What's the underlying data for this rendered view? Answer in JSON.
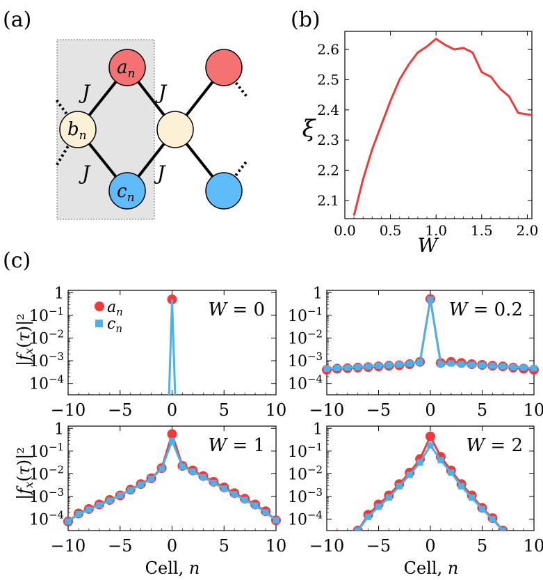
{
  "panel_labels": [
    "(a)",
    "(b)",
    "(c)"
  ],
  "colors": {
    "red": "#f03a3a",
    "blue": "#4ab2ec",
    "a_site": "#f47272",
    "b_site": "#fcf0d6",
    "c_site": "#5fbcf8",
    "cell_box": "#e4e4e4"
  },
  "lattice": {
    "site_a": "a",
    "site_b": "b",
    "site_c": "c",
    "subscript": "n",
    "hopping": "J"
  },
  "chart_data": [
    {
      "panel": "(b)",
      "type": "line",
      "xlabel": "W",
      "ylabel": "ξ",
      "xlim": [
        0,
        2.05
      ],
      "ylim": [
        2.04,
        2.66
      ],
      "xticks": [
        "0.0",
        "0.5",
        "1.0",
        "1.5",
        "2.0"
      ],
      "yticks": [
        "2.1",
        "2.2",
        "2.3",
        "2.4",
        "2.5",
        "2.6"
      ],
      "series": [
        {
          "color": "#f03a3a",
          "x": [
            0.1,
            0.2,
            0.3,
            0.4,
            0.5,
            0.6,
            0.7,
            0.8,
            0.9,
            1.0,
            1.1,
            1.2,
            1.3,
            1.4,
            1.5,
            1.6,
            1.7,
            1.8,
            1.9,
            2.0,
            2.1
          ],
          "y": [
            2.05,
            2.17,
            2.27,
            2.35,
            2.43,
            2.5,
            2.55,
            2.59,
            2.61,
            2.635,
            2.615,
            2.6,
            2.605,
            2.59,
            2.525,
            2.51,
            2.47,
            2.445,
            2.39,
            2.385,
            2.38
          ]
        }
      ]
    },
    {
      "panel": "(c)",
      "type": "scatter",
      "ylabel": "|f_x(τ)|²",
      "xlabel_text": "Cell, ",
      "xlabel_var": "n",
      "ylog": true,
      "xlim": [
        -10,
        10
      ],
      "ylim_log10": [
        -4.5,
        0.1
      ],
      "xticks": [
        "−10",
        "−5",
        "0",
        "5",
        "10"
      ],
      "yticks": [
        "1",
        "10⁻¹",
        "10⁻²",
        "10⁻³",
        "10⁻⁴"
      ],
      "legend": [
        {
          "name_var": "a",
          "name_sub": "n",
          "marker": "circle",
          "color": "#f03a3a"
        },
        {
          "name_var": "c",
          "name_sub": "n",
          "marker": "square",
          "color": "#4ab2ec"
        }
      ],
      "subplots": [
        {
          "annotation": "W = 0",
          "a": {
            "x": [
              0
            ],
            "log10y": [
              -0.3
            ]
          },
          "c_line": {
            "x": [
              -0.3,
              0,
              0.3
            ],
            "log10y": [
              -4.6,
              -0.3,
              -4.6
            ]
          }
        },
        {
          "annotation": "W = 0.2",
          "a": {
            "x": [
              -10,
              -9,
              -8,
              -7,
              -6,
              -5,
              -4,
              -3,
              -2,
              -1,
              0,
              1,
              2,
              3,
              4,
              5,
              6,
              7,
              8,
              9,
              10
            ],
            "log10y": [
              -3.4,
              -3.35,
              -3.33,
              -3.3,
              -3.28,
              -3.25,
              -3.22,
              -3.2,
              -3.15,
              -3.05,
              -0.28,
              -3.1,
              -3.05,
              -3.1,
              -3.15,
              -3.18,
              -3.22,
              -3.25,
              -3.3,
              -3.35,
              -3.4
            ]
          },
          "c": {
            "x": [
              -10,
              -9,
              -8,
              -7,
              -6,
              -5,
              -4,
              -3,
              -2,
              -1,
              0,
              1,
              2,
              3,
              4,
              5,
              6,
              7,
              8,
              9,
              10
            ],
            "log10y": [
              -3.35,
              -3.32,
              -3.3,
              -3.28,
              -3.25,
              -3.22,
              -3.2,
              -3.17,
              -3.13,
              -3.07,
              -0.3,
              -3.15,
              -3.12,
              -3.15,
              -3.18,
              -3.2,
              -3.22,
              -3.25,
              -3.28,
              -3.3,
              -3.33
            ]
          }
        },
        {
          "annotation": "W = 1",
          "a": {
            "x": [
              -10,
              -9,
              -8,
              -7,
              -6,
              -5,
              -4,
              -3,
              -2,
              -1,
              0,
              1,
              2,
              3,
              4,
              5,
              6,
              7,
              8,
              9,
              10
            ],
            "log10y": [
              -4.1,
              -3.75,
              -3.55,
              -3.35,
              -3.15,
              -2.95,
              -2.7,
              -2.45,
              -2.2,
              -1.75,
              -0.25,
              -1.65,
              -1.85,
              -2.1,
              -2.35,
              -2.6,
              -2.85,
              -3.1,
              -3.35,
              -3.65,
              -4.05
            ]
          },
          "c": {
            "x": [
              -10,
              -9,
              -8,
              -7,
              -6,
              -5,
              -4,
              -3,
              -2,
              -1,
              0,
              1,
              2,
              3,
              4,
              5,
              6,
              7,
              8,
              9,
              10
            ],
            "log10y": [
              -4.1,
              -3.78,
              -3.58,
              -3.38,
              -3.18,
              -2.95,
              -2.72,
              -2.48,
              -2.22,
              -1.78,
              -0.55,
              -1.68,
              -1.9,
              -2.15,
              -2.4,
              -2.65,
              -2.9,
              -3.15,
              -3.4,
              -3.7,
              -4.05
            ]
          }
        },
        {
          "annotation": "W = 2",
          "a": {
            "x": [
              -7,
              -6,
              -5,
              -4,
              -3,
              -2,
              -1,
              0,
              1,
              2,
              3,
              4,
              5,
              6,
              7
            ],
            "log10y": [
              -4.5,
              -3.8,
              -3.35,
              -2.95,
              -2.45,
              -1.95,
              -1.35,
              -0.35,
              -1.25,
              -1.85,
              -2.45,
              -2.95,
              -3.5,
              -3.95,
              -4.5
            ]
          },
          "c": {
            "x": [
              -7,
              -6,
              -5,
              -4,
              -3,
              -2,
              -1,
              0,
              1,
              2,
              3,
              4,
              5,
              6,
              7
            ],
            "log10y": [
              -4.5,
              -3.9,
              -3.45,
              -3.05,
              -2.55,
              -2.05,
              -1.5,
              -0.75,
              -1.4,
              -1.95,
              -2.55,
              -3.05,
              -3.55,
              -4.0,
              -4.5
            ]
          }
        }
      ]
    }
  ]
}
